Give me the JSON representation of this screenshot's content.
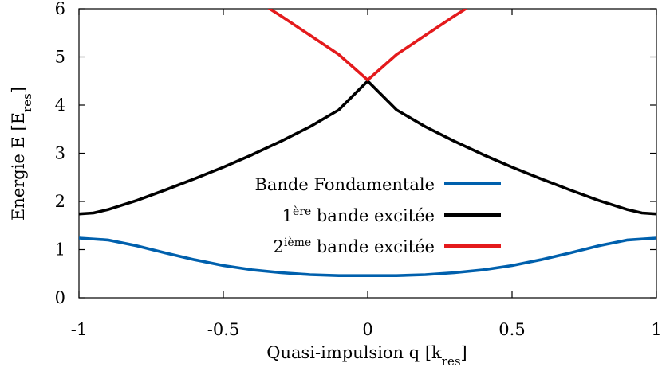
{
  "chart_data": {
    "type": "line",
    "title": "",
    "xlabel": {
      "main": "Quasi-impulsion q [k",
      "sub": "res",
      "close": "]"
    },
    "ylabel": {
      "main": "Energie E [E",
      "sub": "res",
      "close": "]"
    },
    "xlim": [
      -1,
      1
    ],
    "ylim": [
      0,
      6
    ],
    "x_ticks": [
      "-1",
      "-0.5",
      "0",
      "0.5",
      "1"
    ],
    "y_ticks": [
      "0",
      "1",
      "2",
      "3",
      "4",
      "5",
      "6"
    ],
    "grid": false,
    "legend_position": "center",
    "series": [
      {
        "name": "Bande Fondamentale",
        "color": "#0060ad",
        "x": [
          -1.0,
          -0.9,
          -0.8,
          -0.7,
          -0.6,
          -0.5,
          -0.4,
          -0.3,
          -0.2,
          -0.1,
          0.0,
          0.1,
          0.2,
          0.3,
          0.4,
          0.5,
          0.6,
          0.7,
          0.8,
          0.9,
          1.0
        ],
        "y": [
          1.24,
          1.2,
          1.08,
          0.93,
          0.79,
          0.67,
          0.58,
          0.52,
          0.48,
          0.46,
          0.46,
          0.46,
          0.48,
          0.52,
          0.58,
          0.67,
          0.79,
          0.93,
          1.08,
          1.2,
          1.24
        ]
      },
      {
        "name": {
          "pre": "1",
          "sup": "ère",
          "post": " bande excitée"
        },
        "color": "#000000",
        "x": [
          -1.0,
          -0.95,
          -0.9,
          -0.8,
          -0.7,
          -0.6,
          -0.5,
          -0.4,
          -0.3,
          -0.2,
          -0.1,
          0.0,
          0.1,
          0.2,
          0.3,
          0.4,
          0.5,
          0.6,
          0.7,
          0.8,
          0.9,
          0.95,
          1.0
        ],
        "y": [
          1.74,
          1.76,
          1.83,
          2.02,
          2.24,
          2.47,
          2.71,
          2.97,
          3.25,
          3.55,
          3.9,
          4.5,
          3.9,
          3.55,
          3.25,
          2.97,
          2.71,
          2.47,
          2.24,
          2.02,
          1.83,
          1.76,
          1.74
        ]
      },
      {
        "name": {
          "pre": "2",
          "sup": "ième",
          "post": " bande excitée"
        },
        "color": "#e41a1c",
        "x": [
          -0.34,
          -0.3,
          -0.2,
          -0.1,
          0.0,
          0.1,
          0.2,
          0.3,
          0.34
        ],
        "y": [
          6.0,
          5.85,
          5.45,
          5.05,
          4.52,
          5.05,
          5.45,
          5.85,
          6.0
        ]
      }
    ]
  }
}
